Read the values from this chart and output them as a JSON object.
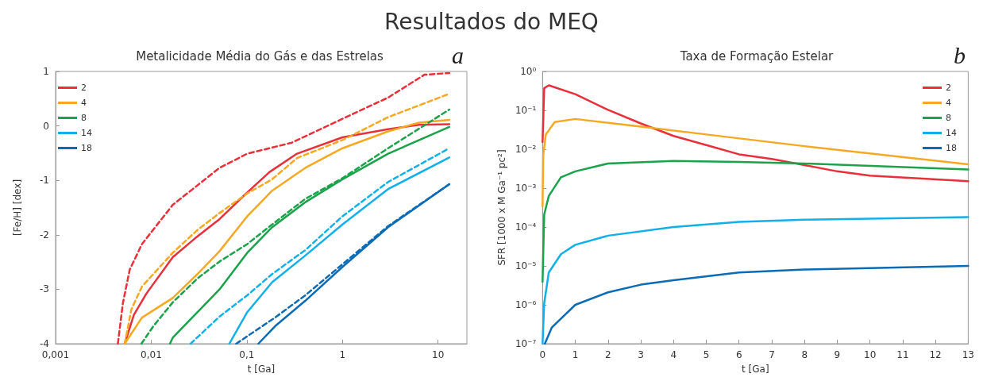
{
  "chart_data": [
    {
      "type": "line",
      "title": "Metalicidade Média do Gás e das Estrelas",
      "xlabel": "t [Ga]",
      "ylabel": "[Fe/H] [dex]",
      "annotations": [
        "Resultados do MEQ",
        "a"
      ],
      "log": "x",
      "xlim": [
        0.001,
        20
      ],
      "xticks": [
        {
          "value": 0.001,
          "label": "0,001"
        },
        {
          "value": 0.01,
          "label": "0,01"
        },
        {
          "value": 0.1,
          "label": "0,1"
        },
        1,
        10
      ],
      "ylim": [
        -4,
        1
      ],
      "yticks": [
        -4,
        -3,
        -2,
        -1,
        0,
        1
      ],
      "grid": false,
      "legend": "top left",
      "marker": "none",
      "line_style": "solid",
      "series": [
        {
          "name": "2",
          "color": "#e8303a",
          "x": [
            0.00528,
            0.00659,
            0.0089,
            0.0168,
            0.0285,
            0.0519,
            0.0946,
            0.172,
            0.335,
            1,
            3,
            6.3,
            13.1
          ],
          "values": [
            -4,
            -3.47,
            -3.08,
            -2.41,
            -2.07,
            -1.71,
            -1.27,
            -0.85,
            -0.51,
            -0.21,
            -0.06,
            0.02,
            0.03
          ]
        },
        {
          "color": "#e8303a",
          "line_style": "dashed",
          "x": [
            0.00448,
            0.00505,
            0.00596,
            0.008,
            0.0168,
            0.0305,
            0.0519,
            0.101,
            0.293,
            1,
            3,
            7.2,
            13.1
          ],
          "values": [
            -4,
            -3.26,
            -2.64,
            -2.17,
            -1.45,
            -1.09,
            -0.77,
            -0.51,
            -0.31,
            0.13,
            0.52,
            0.94,
            0.97
          ]
        },
        {
          "name": "4",
          "color": "#f7a823",
          "x": [
            0.00528,
            0.008,
            0.0168,
            0.0305,
            0.0519,
            0.101,
            0.184,
            0.409,
            1,
            3,
            6.3,
            13.1
          ],
          "values": [
            -4,
            -3.52,
            -3.16,
            -2.72,
            -2.3,
            -1.66,
            -1.19,
            -0.77,
            -0.41,
            -0.1,
            0.06,
            0.11
          ]
        },
        {
          "color": "#f7a823",
          "line_style": "dashed",
          "x": [
            0.00528,
            0.0062,
            0.008,
            0.0168,
            0.0305,
            0.0519,
            0.101,
            0.184,
            0.335,
            1,
            3,
            13.1
          ],
          "values": [
            -4,
            -3.37,
            -2.95,
            -2.33,
            -1.91,
            -1.6,
            -1.24,
            -0.98,
            -0.59,
            -0.26,
            0.16,
            0.59
          ]
        },
        {
          "name": "8",
          "color": "#1aa34a",
          "x": [
            0.0157,
            0.0168,
            0.0305,
            0.0519,
            0.101,
            0.184,
            0.409,
            1,
            3,
            13.1
          ],
          "values": [
            -4,
            -3.89,
            -3.42,
            -3,
            -2.33,
            -1.86,
            -1.4,
            -0.98,
            -0.51,
            -0.02
          ]
        },
        {
          "color": "#1aa34a",
          "line_style": "dashed",
          "x": [
            0.0079,
            0.0105,
            0.0168,
            0.0305,
            0.0519,
            0.101,
            0.184,
            0.409,
            1,
            3,
            13.1
          ],
          "values": [
            -4,
            -3.68,
            -3.24,
            -2.8,
            -2.49,
            -2.17,
            -1.81,
            -1.34,
            -0.96,
            -0.41,
            0.3
          ]
        },
        {
          "name": "14",
          "color": "#12b0e8",
          "x": [
            0.0656,
            0.101,
            0.184,
            0.409,
            1,
            3,
            13.1
          ],
          "values": [
            -4,
            -3.42,
            -2.87,
            -2.38,
            -1.81,
            -1.16,
            -0.58
          ]
        },
        {
          "color": "#12b0e8",
          "line_style": "dashed",
          "x": [
            0.0258,
            0.0519,
            0.101,
            0.184,
            0.409,
            1,
            3,
            13.1
          ],
          "values": [
            -4,
            -3.5,
            -3.11,
            -2.72,
            -2.28,
            -1.66,
            -1.03,
            -0.41
          ]
        },
        {
          "name": "18",
          "color": "#0b6bb5",
          "x": [
            0.132,
            0.197,
            0.409,
            1,
            3,
            13.1
          ],
          "values": [
            -4,
            -3.68,
            -3.21,
            -2.59,
            -1.86,
            -1.07
          ]
        },
        {
          "color": "#0b6bb5",
          "line_style": "dashed",
          "x": [
            0.0774,
            0.197,
            0.409,
            1,
            3,
            13.1
          ],
          "values": [
            -4,
            -3.52,
            -3.11,
            -2.54,
            -1.84,
            -1.07
          ]
        }
      ]
    },
    {
      "type": "line",
      "title": "Taxa de Formação Estelar",
      "xlabel": "t [Ga]",
      "ylabel": "SFR [1000 x M Ga⁻¹ pc²]",
      "annotations": [
        "b"
      ],
      "log": "y",
      "xlim": [
        0,
        13
      ],
      "xticks": [
        0,
        1,
        2,
        3,
        4,
        5,
        6,
        7,
        8,
        9,
        10,
        11,
        12,
        13
      ],
      "ylim": [
        1e-07,
        1
      ],
      "yticks": [
        {
          "value": 1e-07,
          "label": "10⁻⁷"
        },
        {
          "value": 1e-06,
          "label": "10⁻⁶"
        },
        {
          "value": 1e-05,
          "label": "10⁻⁵"
        },
        {
          "value": 0.0001,
          "label": "10⁻⁴"
        },
        {
          "value": 0.001,
          "label": "10⁻³"
        },
        {
          "value": 0.01,
          "label": "10⁻²"
        },
        {
          "value": 0.1,
          "label": "10⁻¹"
        },
        {
          "value": 1,
          "label": "10⁰"
        }
      ],
      "grid": false,
      "legend": "top right",
      "marker": "none",
      "line_style": "solid",
      "series": [
        {
          "name": "2",
          "color": "#e8303a",
          "x": [
            0,
            0.05,
            0.19,
            1,
            2,
            3,
            4,
            5,
            6,
            7,
            8,
            9,
            10,
            13
          ],
          "values": [
            0.0153,
            0.37,
            0.44,
            0.26,
            0.103,
            0.046,
            0.022,
            0.0128,
            0.0074,
            0.0056,
            0.0039,
            0.0027,
            0.0021,
            0.0015
          ]
        },
        {
          "name": "4",
          "color": "#f7a823",
          "x": [
            0,
            0.02,
            0.1,
            0.37,
            1,
            3,
            5,
            8,
            13
          ],
          "values": [
            0.00034,
            0.0068,
            0.024,
            0.05,
            0.06,
            0.038,
            0.024,
            0.012,
            0.0041
          ]
        },
        {
          "name": "8",
          "color": "#1aa34a",
          "x": [
            0,
            0.05,
            0.19,
            0.56,
            1,
            2,
            4,
            6,
            8,
            13
          ],
          "values": [
            3.9e-06,
            0.00021,
            0.00063,
            0.0019,
            0.0027,
            0.0043,
            0.005,
            0.0047,
            0.0043,
            0.003
          ]
        },
        {
          "name": "14",
          "color": "#12b0e8",
          "x": [
            0,
            0.05,
            0.19,
            0.56,
            1,
            2,
            4,
            6,
            8,
            13
          ],
          "values": [
            1e-07,
            1.1e-06,
            6.8e-06,
            2e-05,
            3.5e-05,
            6e-05,
            0.0001,
            0.000135,
            0.000155,
            0.00018
          ]
        },
        {
          "name": "18",
          "color": "#0b6bb5",
          "x": [
            0.07,
            0.28,
            1,
            2,
            3,
            4,
            6,
            8,
            13
          ],
          "values": [
            1e-07,
            2.6e-07,
            1e-06,
            2.1e-06,
            3.3e-06,
            4.3e-06,
            6.8e-06,
            8.1e-06,
            1e-05
          ]
        }
      ]
    }
  ]
}
